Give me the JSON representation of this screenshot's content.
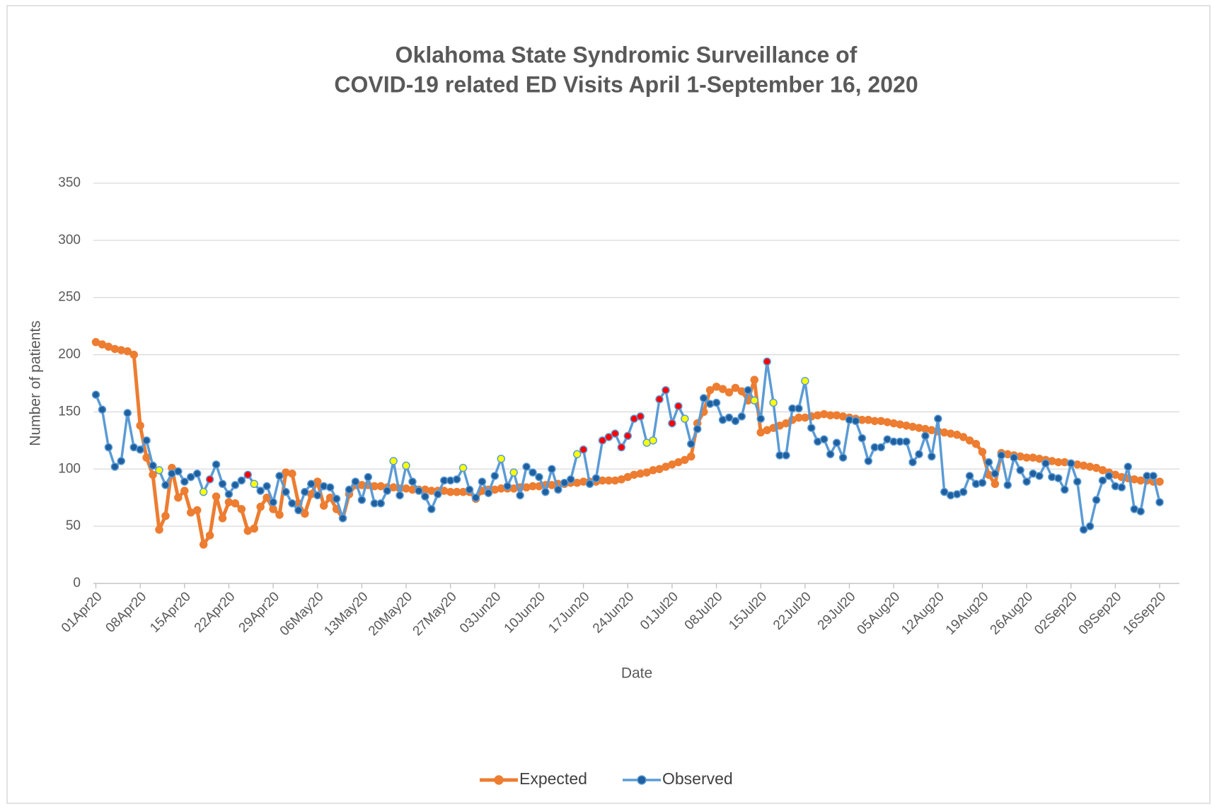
{
  "chart_data": {
    "type": "line",
    "title": [
      "Oklahoma State Syndromic Surveillance of",
      "COVID-19 related ED Visits April 1-September 16, 2020"
    ],
    "x_label": "Date",
    "y_label": "Number of patients",
    "ylim": [
      0,
      350
    ],
    "yticks": [
      0,
      50,
      100,
      150,
      200,
      250,
      300,
      350
    ],
    "grid": true,
    "legend": "bottom",
    "categories": [
      "01Apr20",
      null,
      null,
      null,
      null,
      null,
      null,
      "08Apr20",
      null,
      null,
      null,
      null,
      null,
      null,
      "15Apr20",
      null,
      null,
      null,
      null,
      null,
      null,
      "22Apr20",
      null,
      null,
      null,
      null,
      null,
      null,
      "29Apr20",
      null,
      null,
      null,
      null,
      null,
      null,
      "06May20",
      null,
      null,
      null,
      null,
      null,
      null,
      "13May20",
      null,
      null,
      null,
      null,
      null,
      null,
      "20May20",
      null,
      null,
      null,
      null,
      null,
      null,
      "27May20",
      null,
      null,
      null,
      null,
      null,
      null,
      "03Jun20",
      null,
      null,
      null,
      null,
      null,
      null,
      "10Jun20",
      null,
      null,
      null,
      null,
      null,
      null,
      "17Jun20",
      null,
      null,
      null,
      null,
      null,
      null,
      "24Jun20",
      null,
      null,
      null,
      null,
      null,
      null,
      "01Jul20",
      null,
      null,
      null,
      null,
      null,
      null,
      "08Jul20",
      null,
      null,
      null,
      null,
      null,
      null,
      "15Jul20",
      null,
      null,
      null,
      null,
      null,
      null,
      "22Jul20",
      null,
      null,
      null,
      null,
      null,
      null,
      "29Jul20",
      null,
      null,
      null,
      null,
      null,
      null,
      "05Aug20",
      null,
      null,
      null,
      null,
      null,
      null,
      "12Aug20",
      null,
      null,
      null,
      null,
      null,
      null,
      "19Aug20",
      null,
      null,
      null,
      null,
      null,
      null,
      "26Aug20",
      null,
      null,
      null,
      null,
      null,
      null,
      "02Sep20",
      null,
      null,
      null,
      null,
      null,
      null,
      "09Sep20",
      null,
      null,
      null,
      null,
      null,
      null,
      "16Sep20"
    ],
    "series": [
      {
        "name": "Expected",
        "color": "#ed7d31",
        "values": [
          211,
          209,
          207,
          205,
          204,
          203,
          200,
          138,
          110,
          95,
          47,
          59,
          101,
          75,
          81,
          62,
          64,
          34,
          42,
          76,
          57,
          71,
          70,
          65,
          46,
          48,
          67,
          75,
          65,
          60,
          97,
          96,
          70,
          61,
          78,
          89,
          68,
          75,
          65,
          57,
          78,
          86,
          86,
          86,
          85,
          85,
          84,
          84,
          83,
          83,
          82,
          82,
          82,
          81,
          81,
          81,
          80,
          80,
          80,
          80,
          74,
          81,
          82,
          82,
          83,
          83,
          83,
          84,
          84,
          85,
          85,
          86,
          86,
          87,
          87,
          88,
          88,
          89,
          89,
          89,
          90,
          90,
          90,
          91,
          93,
          95,
          96,
          97,
          99,
          100,
          102,
          104,
          106,
          108,
          111,
          140,
          150,
          169,
          172,
          170,
          167,
          171,
          168,
          160,
          178,
          132,
          134,
          136,
          138,
          140,
          143,
          145,
          145,
          146,
          147,
          148,
          147,
          147,
          146,
          145,
          144,
          143,
          143,
          142,
          142,
          141,
          140,
          139,
          138,
          137,
          136,
          135,
          134,
          133,
          132,
          131,
          130,
          128,
          125,
          122,
          115,
          95,
          87,
          114,
          113,
          112,
          111,
          110,
          110,
          109,
          108,
          107,
          106,
          106,
          105,
          104,
          103,
          102,
          101,
          99,
          97,
          95,
          93,
          92,
          91,
          90,
          90,
          89,
          89
        ]
      },
      {
        "name": "Observed",
        "color": "#5b9bd5",
        "values": [
          165,
          152,
          119,
          102,
          107,
          149,
          119,
          117,
          125,
          103,
          99,
          86,
          96,
          98,
          89,
          93,
          96,
          80,
          91,
          104,
          87,
          78,
          86,
          90,
          95,
          87,
          81,
          85,
          71,
          94,
          80,
          70,
          64,
          80,
          87,
          77,
          85,
          84,
          74,
          57,
          82,
          89,
          73,
          93,
          70,
          70,
          81,
          107,
          77,
          103,
          89,
          81,
          76,
          65,
          78,
          90,
          90,
          91,
          101,
          82,
          75,
          89,
          79,
          94,
          109,
          85,
          97,
          77,
          102,
          97,
          93,
          80,
          100,
          82,
          88,
          91,
          113,
          117,
          87,
          92,
          125,
          128,
          131,
          119,
          129,
          144,
          146,
          123,
          125,
          161,
          169,
          140,
          155,
          144,
          122,
          135,
          162,
          157,
          158,
          143,
          145,
          142,
          146,
          169,
          160,
          144,
          194,
          158,
          112,
          112,
          153,
          153,
          177,
          136,
          124,
          126,
          113,
          123,
          110,
          143,
          142,
          127,
          107,
          119,
          119,
          126,
          124,
          124,
          124,
          106,
          113,
          129,
          111,
          144,
          80,
          77,
          78,
          80,
          94,
          87,
          88,
          106,
          96,
          112,
          86,
          110,
          99,
          89,
          96,
          94,
          105,
          93,
          92,
          82,
          105,
          89,
          47,
          50,
          73,
          90,
          94,
          85,
          84,
          102,
          65,
          63,
          94,
          94,
          71
        ],
        "marker_colors": [
          null,
          null,
          null,
          null,
          null,
          null,
          null,
          null,
          null,
          null,
          "#ffff00",
          null,
          null,
          null,
          null,
          null,
          null,
          "#ffff00",
          "#ff0000",
          null,
          null,
          null,
          null,
          null,
          "#ff0000",
          "#ffff00",
          null,
          null,
          null,
          null,
          null,
          null,
          null,
          null,
          null,
          null,
          null,
          null,
          null,
          null,
          null,
          null,
          null,
          null,
          null,
          null,
          null,
          "#ffff00",
          null,
          "#ffff00",
          null,
          null,
          null,
          null,
          null,
          null,
          null,
          null,
          "#ffff00",
          null,
          null,
          null,
          null,
          null,
          "#ffff00",
          null,
          "#ffff00",
          null,
          null,
          null,
          null,
          null,
          null,
          null,
          null,
          null,
          "#ffff00",
          "#ff0000",
          null,
          null,
          "#ff0000",
          "#ff0000",
          "#ff0000",
          "#ff0000",
          "#ff0000",
          "#ff0000",
          "#ff0000",
          "#ffff00",
          "#ffff00",
          "#ff0000",
          "#ff0000",
          "#ff0000",
          "#ff0000",
          "#ffff00",
          null,
          null,
          null,
          null,
          null,
          null,
          null,
          null,
          null,
          null,
          "#ffff00",
          null,
          "#ff0000",
          "#ffff00",
          null,
          null,
          null,
          null,
          "#ffff00",
          null,
          null,
          null,
          null,
          null,
          null,
          null,
          null,
          null,
          null,
          null,
          null,
          null,
          null,
          null,
          null,
          null,
          null,
          null,
          null,
          null,
          null,
          null,
          null,
          null,
          null,
          null,
          null,
          null,
          null,
          null,
          null,
          null,
          null,
          null,
          null,
          null,
          null,
          null,
          null,
          null,
          null,
          null,
          null,
          null,
          null,
          null,
          null,
          null,
          null,
          null,
          null,
          null,
          null,
          null,
          null
        ]
      }
    ]
  }
}
